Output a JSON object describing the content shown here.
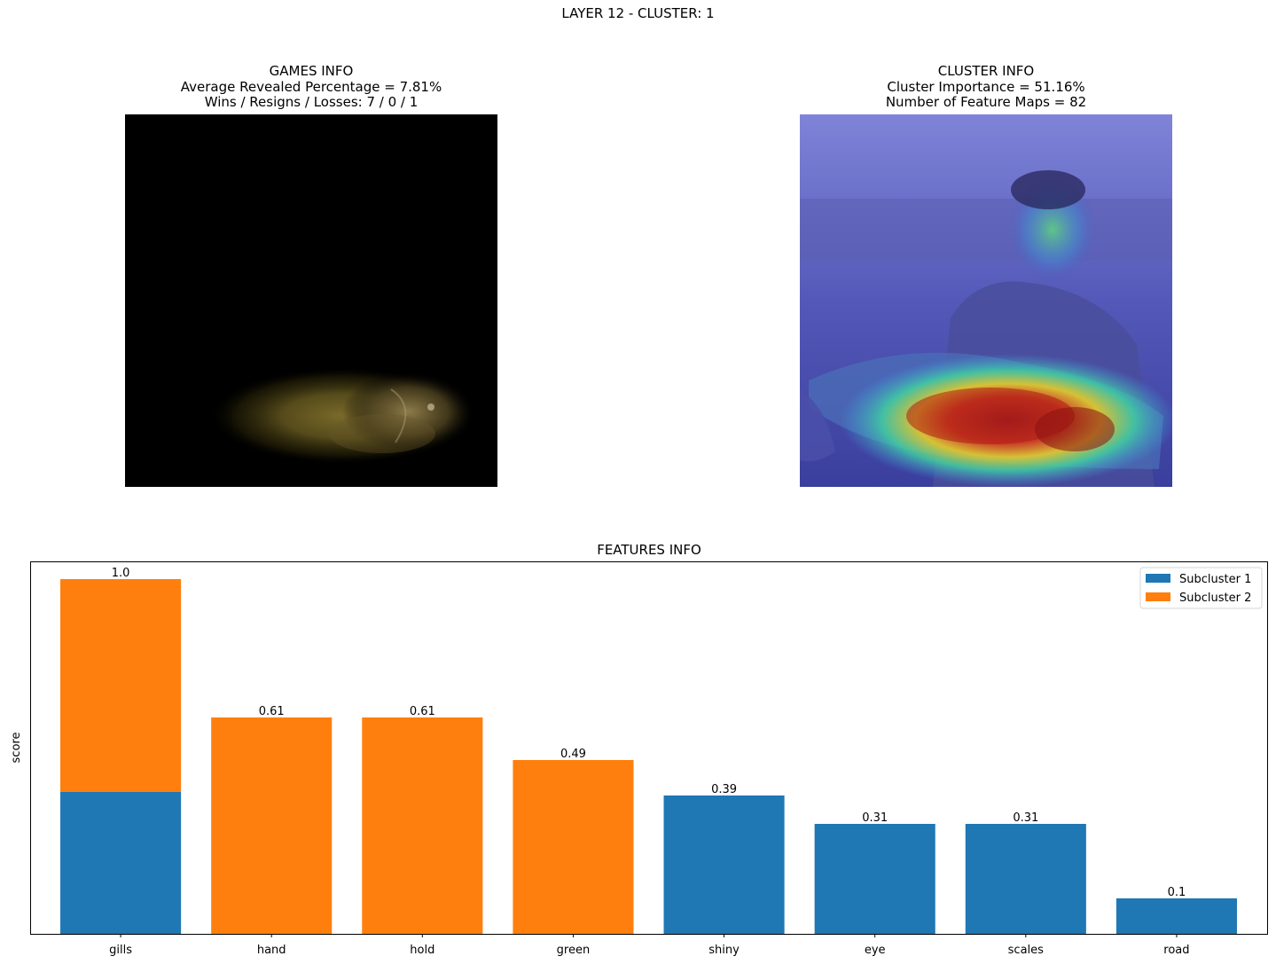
{
  "suptitle": "LAYER 12 - CLUSTER: 1",
  "games_info": {
    "title": "GAMES INFO",
    "line1": "Average Revealed Percentage = 7.81%",
    "line2": "Wins / Resigns / Losses: 7 / 0 / 1",
    "image_icon": "masked-fish-photo"
  },
  "cluster_info": {
    "title": "CLUSTER INFO",
    "line1": "Cluster Importance = 51.16%",
    "line2": "Number of Feature Maps = 82",
    "image_icon": "heatmap-overlay-photo"
  },
  "chart_data": {
    "type": "bar",
    "stacked": true,
    "title": "FEATURES INFO",
    "xlabel": "",
    "ylabel": "score",
    "ylim": [
      0,
      1.05
    ],
    "categories": [
      "gills",
      "hand",
      "hold",
      "green",
      "shiny",
      "eye",
      "scales",
      "road"
    ],
    "series": [
      {
        "name": "Subcluster 1",
        "color": "#1f77b4",
        "values": [
          0.4,
          0,
          0,
          0,
          0.39,
          0.31,
          0.31,
          0.1
        ]
      },
      {
        "name": "Subcluster 2",
        "color": "#ff7f0e",
        "values": [
          0.6,
          0.61,
          0.61,
          0.49,
          0,
          0,
          0,
          0
        ]
      }
    ],
    "data_labels": [
      "1.0",
      "0.61",
      "0.61",
      "0.49",
      "0.39",
      "0.31",
      "0.31",
      "0.1"
    ],
    "legend_position": "top-right",
    "grid": false
  }
}
